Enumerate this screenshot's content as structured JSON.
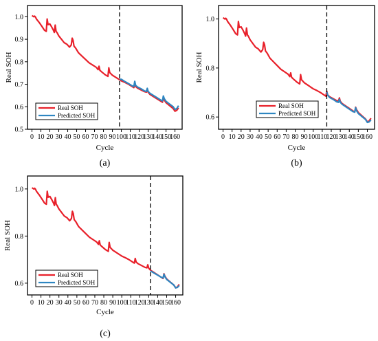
{
  "chart_data": [
    {
      "type": "line",
      "panel": "a",
      "caption": "(a)",
      "xlabel": "Cycle",
      "ylabel": "Real SOH",
      "xlim": [
        -5,
        168
      ],
      "ylim": [
        0.5,
        1.05
      ],
      "xticks": [
        0,
        10,
        20,
        30,
        40,
        50,
        60,
        70,
        80,
        90,
        100,
        110,
        120,
        130,
        140,
        150,
        160
      ],
      "yticks": [
        0.5,
        0.6,
        0.7,
        0.8,
        0.9,
        1.0
      ],
      "ytick_labels": [
        "0.5",
        "0.6",
        "0.7",
        "0.8",
        "0.9",
        "1.0"
      ],
      "split_cycle": 98,
      "legend_position": "bottom-left",
      "legend": [
        "Real SOH",
        "Predicted SOH"
      ],
      "series": [
        {
          "name": "Real SOH",
          "color": "#e8202a",
          "x": [
            0,
            2,
            3,
            4,
            5,
            8,
            11,
            14,
            16,
            17,
            18,
            20,
            22,
            24,
            25,
            26,
            27,
            28,
            30,
            33,
            36,
            39,
            42,
            44,
            45,
            46,
            47,
            49,
            52,
            56,
            60,
            64,
            68,
            72,
            74,
            75,
            76,
            78,
            82,
            85,
            86,
            87,
            88,
            90,
            94,
            98,
            100,
            104,
            108,
            112,
            114,
            115,
            116,
            118,
            122,
            126,
            128,
            129,
            130,
            132,
            136,
            140,
            144,
            146,
            147,
            148,
            150,
            154,
            158,
            160,
            162,
            164
          ],
          "y": [
            1.005,
            1.0,
            1.003,
            0.998,
            0.99,
            0.975,
            0.958,
            0.94,
            0.935,
            0.99,
            0.965,
            0.968,
            0.955,
            0.94,
            0.93,
            0.963,
            0.935,
            0.93,
            0.915,
            0.9,
            0.885,
            0.878,
            0.865,
            0.875,
            0.905,
            0.895,
            0.87,
            0.86,
            0.84,
            0.825,
            0.81,
            0.795,
            0.785,
            0.775,
            0.765,
            0.78,
            0.762,
            0.755,
            0.742,
            0.735,
            0.773,
            0.752,
            0.748,
            0.74,
            0.73,
            0.72,
            0.715,
            0.708,
            0.7,
            0.69,
            0.685,
            0.705,
            0.69,
            0.683,
            0.675,
            0.667,
            0.665,
            0.678,
            0.664,
            0.655,
            0.645,
            0.635,
            0.625,
            0.62,
            0.64,
            0.63,
            0.618,
            0.605,
            0.592,
            0.58,
            0.584,
            0.595
          ]
        },
        {
          "name": "Predicted SOH",
          "color": "#2e86c1",
          "x": [
            98,
            100,
            104,
            108,
            112,
            114,
            115,
            116,
            118,
            122,
            126,
            128,
            129,
            130,
            132,
            136,
            140,
            144,
            146,
            147,
            148,
            150,
            154,
            158,
            160,
            162,
            164
          ],
          "y": [
            0.722,
            0.722,
            0.712,
            0.703,
            0.693,
            0.69,
            0.713,
            0.695,
            0.688,
            0.68,
            0.67,
            0.668,
            0.682,
            0.668,
            0.66,
            0.65,
            0.64,
            0.63,
            0.626,
            0.648,
            0.636,
            0.624,
            0.612,
            0.6,
            0.588,
            0.592,
            0.605
          ]
        }
      ]
    },
    {
      "type": "line",
      "panel": "b",
      "caption": "(b)",
      "xlabel": "Cycle",
      "ylabel": "Real SOH",
      "xlim": [
        -5,
        168
      ],
      "ylim": [
        0.55,
        1.055
      ],
      "xticks": [
        0,
        10,
        20,
        30,
        40,
        50,
        60,
        70,
        80,
        90,
        100,
        110,
        120,
        130,
        140,
        150,
        160
      ],
      "yticks": [
        0.6,
        0.8,
        1.0
      ],
      "ytick_labels": [
        "0.6",
        "0.8",
        "1.0"
      ],
      "split_cycle": 115,
      "legend_position": "bottom-center",
      "legend": [
        "Real SOH",
        "Predicted SOH"
      ],
      "series": [
        {
          "name": "Real SOH",
          "color": "#e8202a",
          "x": [
            0,
            2,
            3,
            4,
            5,
            8,
            11,
            14,
            16,
            17,
            18,
            20,
            22,
            24,
            25,
            26,
            27,
            28,
            30,
            33,
            36,
            39,
            42,
            44,
            45,
            46,
            47,
            49,
            52,
            56,
            60,
            64,
            68,
            72,
            74,
            75,
            76,
            78,
            82,
            85,
            86,
            87,
            88,
            90,
            94,
            98,
            100,
            104,
            108,
            112,
            114,
            115,
            116,
            118,
            122,
            126,
            128,
            129,
            130,
            132,
            136,
            140,
            144,
            146,
            147,
            148,
            150,
            154,
            158,
            160,
            162,
            164
          ],
          "y": [
            1.005,
            1.0,
            1.003,
            0.998,
            0.99,
            0.975,
            0.958,
            0.94,
            0.935,
            0.99,
            0.965,
            0.968,
            0.955,
            0.94,
            0.93,
            0.963,
            0.935,
            0.93,
            0.915,
            0.9,
            0.885,
            0.878,
            0.865,
            0.875,
            0.905,
            0.895,
            0.87,
            0.86,
            0.84,
            0.825,
            0.81,
            0.795,
            0.785,
            0.775,
            0.765,
            0.78,
            0.762,
            0.755,
            0.742,
            0.735,
            0.773,
            0.752,
            0.748,
            0.74,
            0.73,
            0.72,
            0.715,
            0.708,
            0.7,
            0.69,
            0.685,
            0.705,
            0.69,
            0.683,
            0.675,
            0.667,
            0.665,
            0.678,
            0.664,
            0.655,
            0.645,
            0.635,
            0.625,
            0.62,
            0.64,
            0.63,
            0.618,
            0.605,
            0.592,
            0.58,
            0.584,
            0.595
          ]
        },
        {
          "name": "Predicted SOH",
          "color": "#2e86c1",
          "x": [
            115,
            116,
            118,
            122,
            126,
            128,
            129,
            130,
            132,
            136,
            140,
            144,
            146,
            147,
            148,
            150,
            154,
            158,
            160,
            162,
            164
          ],
          "y": [
            0.702,
            0.69,
            0.68,
            0.672,
            0.662,
            0.66,
            0.672,
            0.66,
            0.652,
            0.642,
            0.632,
            0.622,
            0.62,
            0.638,
            0.626,
            0.614,
            0.602,
            0.59,
            0.578,
            0.58,
            0.588
          ]
        }
      ]
    },
    {
      "type": "line",
      "panel": "c",
      "caption": "(c)",
      "xlabel": "Cycle",
      "ylabel": "Real SOH",
      "xlim": [
        -5,
        168
      ],
      "ylim": [
        0.55,
        1.055
      ],
      "xticks": [
        0,
        10,
        20,
        30,
        40,
        50,
        60,
        70,
        80,
        90,
        100,
        110,
        120,
        130,
        140,
        150,
        160
      ],
      "yticks": [
        0.6,
        0.8,
        1.0
      ],
      "ytick_labels": [
        "0.6",
        "0.8",
        "1.0"
      ],
      "split_cycle": 132,
      "legend_position": "bottom-left",
      "legend": [
        "Real SOH",
        "Predicted SOH"
      ],
      "series": [
        {
          "name": "Real SOH",
          "color": "#e8202a",
          "x": [
            0,
            2,
            3,
            4,
            5,
            8,
            11,
            14,
            16,
            17,
            18,
            20,
            22,
            24,
            25,
            26,
            27,
            28,
            30,
            33,
            36,
            39,
            42,
            44,
            45,
            46,
            47,
            49,
            52,
            56,
            60,
            64,
            68,
            72,
            74,
            75,
            76,
            78,
            82,
            85,
            86,
            87,
            88,
            90,
            94,
            98,
            100,
            104,
            108,
            112,
            114,
            115,
            116,
            118,
            122,
            126,
            128,
            129,
            130,
            132,
            136,
            140,
            144,
            146,
            147,
            148,
            150,
            154,
            158,
            160,
            162,
            164
          ],
          "y": [
            1.005,
            1.0,
            1.003,
            0.998,
            0.99,
            0.975,
            0.958,
            0.94,
            0.935,
            0.99,
            0.965,
            0.968,
            0.955,
            0.94,
            0.93,
            0.963,
            0.935,
            0.93,
            0.915,
            0.9,
            0.885,
            0.878,
            0.865,
            0.875,
            0.905,
            0.895,
            0.87,
            0.86,
            0.84,
            0.825,
            0.81,
            0.795,
            0.785,
            0.775,
            0.765,
            0.78,
            0.762,
            0.755,
            0.742,
            0.735,
            0.773,
            0.752,
            0.748,
            0.74,
            0.73,
            0.72,
            0.715,
            0.708,
            0.7,
            0.69,
            0.685,
            0.705,
            0.69,
            0.683,
            0.675,
            0.667,
            0.665,
            0.678,
            0.664,
            0.655,
            0.645,
            0.635,
            0.625,
            0.62,
            0.64,
            0.63,
            0.618,
            0.605,
            0.592,
            0.58,
            0.584,
            0.595
          ]
        },
        {
          "name": "Predicted SOH",
          "color": "#2e86c1",
          "x": [
            132,
            136,
            140,
            144,
            146,
            147,
            148,
            150,
            154,
            158,
            160,
            162,
            164
          ],
          "y": [
            0.652,
            0.643,
            0.634,
            0.625,
            0.622,
            0.638,
            0.628,
            0.616,
            0.604,
            0.592,
            0.58,
            0.582,
            0.59
          ]
        }
      ]
    }
  ]
}
